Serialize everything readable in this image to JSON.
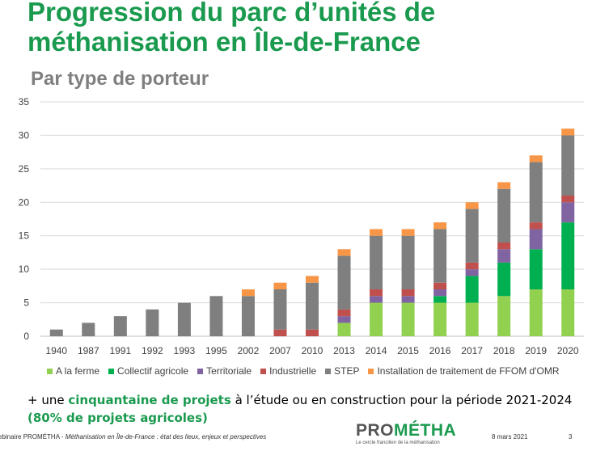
{
  "title_line1": "Progression du parc d’unités de",
  "title_line2": "méthanisation en Île-de-France",
  "subtitle": "Par type de porteur",
  "chart_data": {
    "type": "bar",
    "stacked": true,
    "categories": [
      "1940",
      "1987",
      "1991",
      "1992",
      "1993",
      "1995",
      "2002",
      "2007",
      "2010",
      "2013",
      "2014",
      "2015",
      "2016",
      "2017",
      "2018",
      "2019",
      "2020"
    ],
    "ylim": [
      0,
      35
    ],
    "yticks": [
      0,
      5,
      10,
      15,
      20,
      25,
      30,
      35
    ],
    "grid": true,
    "legend_position": "bottom",
    "series": [
      {
        "name": "A la ferme",
        "color": "#92d050",
        "values": [
          0,
          0,
          0,
          0,
          0,
          0,
          0,
          0,
          0,
          2,
          5,
          5,
          5,
          5,
          6,
          7,
          7
        ]
      },
      {
        "name": "Collectif agricole",
        "color": "#00b050",
        "values": [
          0,
          0,
          0,
          0,
          0,
          0,
          0,
          0,
          0,
          0,
          0,
          0,
          1,
          4,
          5,
          6,
          10
        ]
      },
      {
        "name": "Territoriale",
        "color": "#8064a2",
        "values": [
          0,
          0,
          0,
          0,
          0,
          0,
          0,
          0,
          0,
          1,
          1,
          1,
          1,
          1,
          2,
          3,
          3
        ]
      },
      {
        "name": "Industrielle",
        "color": "#c0504d",
        "values": [
          0,
          0,
          0,
          0,
          0,
          0,
          0,
          1,
          1,
          1,
          1,
          1,
          1,
          1,
          1,
          1,
          1
        ]
      },
      {
        "name": "STEP",
        "color": "#7f7f7f",
        "values": [
          1,
          2,
          3,
          4,
          5,
          6,
          6,
          6,
          7,
          8,
          8,
          8,
          8,
          8,
          8,
          9,
          9
        ]
      },
      {
        "name": "Installation de traitement de FFOM d'OMR",
        "color": "#f79646",
        "values": [
          0,
          0,
          0,
          0,
          0,
          0,
          1,
          1,
          1,
          1,
          1,
          1,
          1,
          1,
          1,
          1,
          1
        ]
      }
    ]
  },
  "note": {
    "prefix": "+ une ",
    "highlight1": "cinquantaine de projets",
    "middle": " à l’étude ou en construction pour la période 2021-2024",
    "highlight2": "(80% de projets agricoles)"
  },
  "footer": {
    "prefix": "ebinaire PROMÉTHA - ",
    "italic": "Méthanisation en Île-de-France : état des lieux, enjeux et perspectives",
    "date": "8 mars 2021",
    "page": "3"
  },
  "logo": {
    "part1": "PRO",
    "part2": "MÉTHA",
    "tagline": "Le cercle francilien de la méthanisation"
  }
}
